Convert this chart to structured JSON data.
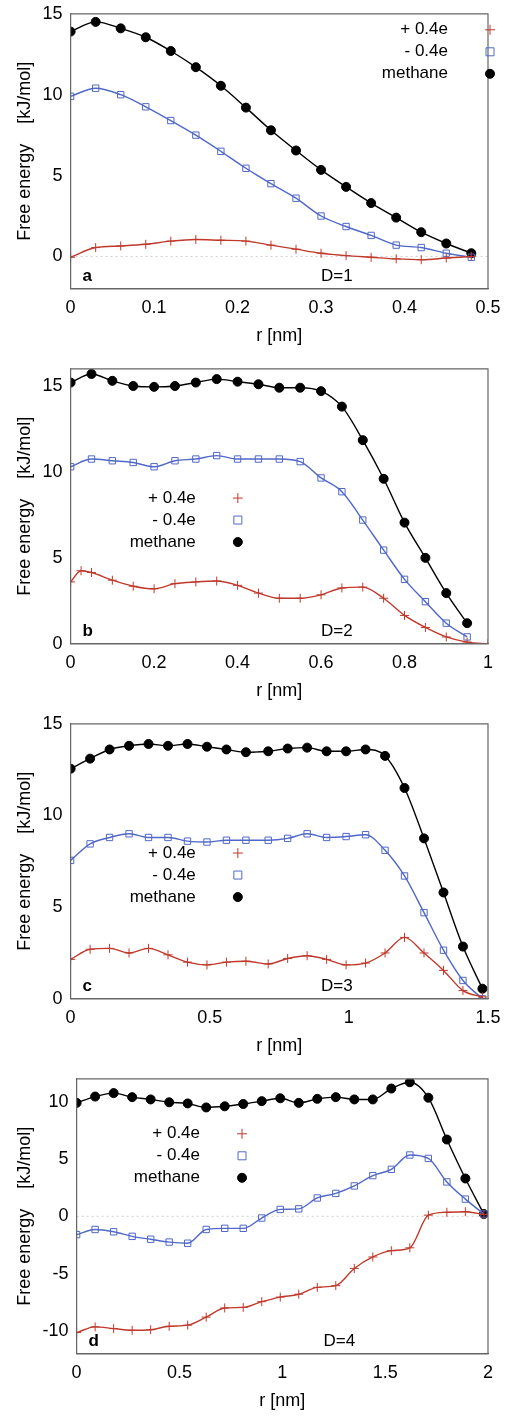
{
  "chart_data": [
    {
      "type": "line",
      "xlabel": "r [nm]",
      "ylabel": "Free energy    [kJ/mol]",
      "xlim": [
        0,
        0.5
      ],
      "xticks": [
        0,
        0.1,
        0.2,
        0.3,
        0.4,
        0.5
      ],
      "ylim": [
        -2,
        15
      ],
      "yticks": [
        0,
        5,
        10,
        15
      ],
      "legend": "top right",
      "annotations": [
        "a",
        "D=1"
      ],
      "ref_lines": [
        {
          "axis": "y",
          "value": 0,
          "color": "#d0d0d0",
          "line_style": "dotted"
        }
      ],
      "series": [
        {
          "name": "+ 0.4e",
          "color": "#c0392b",
          "marker": "cross",
          "x": [
            0,
            0.03,
            0.06,
            0.09,
            0.12,
            0.15,
            0.18,
            0.21,
            0.24,
            0.27,
            0.3,
            0.33,
            0.36,
            0.39,
            0.42,
            0.45,
            0.48
          ],
          "values": [
            -0.05,
            0.55,
            0.65,
            0.75,
            0.95,
            1.05,
            1.0,
            0.95,
            0.7,
            0.45,
            0.2,
            0.05,
            -0.05,
            -0.15,
            -0.2,
            -0.1,
            0
          ]
        },
        {
          "name": "- 0.4e",
          "color": "#5068c8",
          "marker": "square",
          "x": [
            0,
            0.03,
            0.06,
            0.09,
            0.12,
            0.15,
            0.18,
            0.21,
            0.24,
            0.27,
            0.3,
            0.33,
            0.36,
            0.39,
            0.42,
            0.45,
            0.48
          ],
          "values": [
            9.9,
            10.4,
            10.0,
            9.25,
            8.4,
            7.5,
            6.5,
            5.45,
            4.5,
            3.6,
            2.5,
            1.85,
            1.3,
            0.7,
            0.55,
            0.2,
            -0.05
          ]
        },
        {
          "name": "methane",
          "color": "#000000",
          "marker": "circle",
          "x": [
            0,
            0.03,
            0.06,
            0.09,
            0.12,
            0.15,
            0.18,
            0.21,
            0.24,
            0.27,
            0.3,
            0.33,
            0.36,
            0.39,
            0.42,
            0.45,
            0.48
          ],
          "values": [
            13.9,
            14.5,
            14.1,
            13.55,
            12.7,
            11.7,
            10.55,
            9.2,
            7.8,
            6.55,
            5.35,
            4.3,
            3.3,
            2.4,
            1.5,
            0.8,
            0.2
          ]
        }
      ]
    },
    {
      "type": "line",
      "xlabel": "r [nm]",
      "ylabel": "Free energy    [kJ/mol]",
      "xlim": [
        0,
        1
      ],
      "xticks": [
        0,
        0.2,
        0.4,
        0.6,
        0.8,
        1
      ],
      "ylim": [
        0,
        16
      ],
      "yticks": [
        0,
        5,
        10,
        15
      ],
      "legend": "left",
      "annotations": [
        "b",
        "D=2"
      ],
      "series": [
        {
          "name": "+ 0.4e",
          "color": "#c0392b",
          "marker": "cross",
          "x": [
            0,
            0.025,
            0.05,
            0.1,
            0.15,
            0.2,
            0.25,
            0.3,
            0.35,
            0.4,
            0.45,
            0.5,
            0.55,
            0.6,
            0.65,
            0.7,
            0.75,
            0.8,
            0.85,
            0.9,
            0.95,
            1
          ],
          "values": [
            3.6,
            4.25,
            4.15,
            3.7,
            3.35,
            3.2,
            3.5,
            3.6,
            3.65,
            3.4,
            2.95,
            2.65,
            2.65,
            2.85,
            3.25,
            3.3,
            2.65,
            1.65,
            0.95,
            0.4,
            0.1,
            0
          ]
        },
        {
          "name": "- 0.4e",
          "color": "#5068c8",
          "marker": "square",
          "x": [
            0,
            0.05,
            0.1,
            0.15,
            0.2,
            0.25,
            0.3,
            0.35,
            0.4,
            0.45,
            0.5,
            0.55,
            0.6,
            0.65,
            0.7,
            0.75,
            0.8,
            0.85,
            0.9,
            0.95
          ],
          "values": [
            10.3,
            10.75,
            10.65,
            10.55,
            10.3,
            10.65,
            10.75,
            10.95,
            10.75,
            10.75,
            10.75,
            10.6,
            9.65,
            8.85,
            7.2,
            5.45,
            3.75,
            2.45,
            1.2,
            0.4
          ]
        },
        {
          "name": "methane",
          "color": "#000000",
          "marker": "circle",
          "x": [
            0,
            0.05,
            0.1,
            0.15,
            0.2,
            0.25,
            0.3,
            0.35,
            0.4,
            0.45,
            0.5,
            0.55,
            0.6,
            0.65,
            0.7,
            0.75,
            0.8,
            0.85,
            0.9,
            0.95
          ],
          "values": [
            15.2,
            15.7,
            15.3,
            15.0,
            14.95,
            15.0,
            15.2,
            15.4,
            15.25,
            15.1,
            14.9,
            14.9,
            14.7,
            13.8,
            11.85,
            9.6,
            7.05,
            5.0,
            2.95,
            1.2
          ]
        }
      ]
    },
    {
      "type": "line",
      "xlabel": "r [nm]",
      "ylabel": "Free energy    [kJ/mol]",
      "xlim": [
        0,
        1.5
      ],
      "xticks": [
        0,
        0.5,
        1,
        1.5
      ],
      "ylim": [
        0,
        15
      ],
      "yticks": [
        0,
        5,
        10,
        15
      ],
      "legend": "left",
      "annotations": [
        "c",
        "D=3"
      ],
      "series": [
        {
          "name": "+ 0.4e",
          "color": "#c0392b",
          "marker": "cross",
          "x": [
            0,
            0.07,
            0.14,
            0.21,
            0.28,
            0.35,
            0.42,
            0.49,
            0.56,
            0.63,
            0.71,
            0.78,
            0.85,
            0.92,
            0.99,
            1.06,
            1.13,
            1.2,
            1.27,
            1.34,
            1.41,
            1.48
          ],
          "values": [
            2.15,
            2.7,
            2.75,
            2.5,
            2.75,
            2.4,
            2.0,
            1.85,
            2.0,
            2.05,
            1.9,
            2.2,
            2.35,
            2.15,
            1.85,
            1.95,
            2.5,
            3.35,
            2.5,
            1.55,
            0.45,
            0.1
          ]
        },
        {
          "name": "- 0.4e",
          "color": "#5068c8",
          "marker": "square",
          "x": [
            0,
            0.07,
            0.14,
            0.21,
            0.28,
            0.35,
            0.42,
            0.49,
            0.56,
            0.63,
            0.71,
            0.78,
            0.85,
            0.92,
            0.99,
            1.06,
            1.13,
            1.2,
            1.27,
            1.34,
            1.41,
            1.48
          ],
          "values": [
            7.55,
            8.45,
            8.8,
            9.0,
            8.8,
            8.8,
            8.6,
            8.55,
            8.65,
            8.65,
            8.65,
            8.75,
            9.0,
            8.8,
            8.85,
            8.95,
            8.1,
            6.7,
            4.7,
            2.65,
            1.0,
            0
          ]
        },
        {
          "name": "methane",
          "color": "#000000",
          "marker": "circle",
          "x": [
            0,
            0.07,
            0.14,
            0.21,
            0.28,
            0.35,
            0.42,
            0.49,
            0.56,
            0.63,
            0.71,
            0.78,
            0.85,
            0.92,
            0.99,
            1.06,
            1.13,
            1.2,
            1.27,
            1.34,
            1.41,
            1.48
          ],
          "values": [
            12.55,
            13.1,
            13.6,
            13.8,
            13.9,
            13.8,
            13.9,
            13.75,
            13.6,
            13.45,
            13.5,
            13.65,
            13.7,
            13.5,
            13.5,
            13.6,
            13.25,
            11.5,
            8.75,
            5.8,
            2.85,
            0.55
          ]
        }
      ]
    },
    {
      "type": "line",
      "xlabel": "r [nm]",
      "ylabel": "Free energy    [kJ/mol]",
      "xlim": [
        0,
        2
      ],
      "xticks": [
        0,
        0.5,
        1,
        1.5,
        2
      ],
      "ylim": [
        -12,
        12
      ],
      "yticks": [
        -10,
        -5,
        0,
        5,
        10
      ],
      "legend": "top left",
      "annotations": [
        "d",
        "D=4"
      ],
      "ref_lines": [
        {
          "axis": "y",
          "value": 0,
          "color": "#d0d0d0",
          "line_style": "dotted"
        }
      ],
      "series": [
        {
          "name": "+ 0.4e",
          "color": "#c0392b",
          "marker": "cross",
          "x": [
            0,
            0.09,
            0.18,
            0.27,
            0.36,
            0.45,
            0.54,
            0.63,
            0.72,
            0.81,
            0.9,
            0.99,
            1.08,
            1.17,
            1.26,
            1.35,
            1.44,
            1.53,
            1.62,
            1.71,
            1.8,
            1.89,
            1.98
          ],
          "values": [
            -10.15,
            -9.65,
            -9.8,
            -9.95,
            -9.9,
            -9.6,
            -9.5,
            -8.8,
            -8.0,
            -7.95,
            -7.45,
            -7.05,
            -6.8,
            -6.2,
            -6.05,
            -4.55,
            -3.55,
            -3.0,
            -2.75,
            0.1,
            0.35,
            0.4,
            0.15
          ]
        },
        {
          "name": "- 0.4e",
          "color": "#5068c8",
          "marker": "square",
          "x": [
            0,
            0.09,
            0.18,
            0.27,
            0.36,
            0.45,
            0.54,
            0.63,
            0.72,
            0.81,
            0.9,
            0.99,
            1.08,
            1.17,
            1.26,
            1.35,
            1.44,
            1.53,
            1.62,
            1.71,
            1.8,
            1.89,
            1.98
          ],
          "values": [
            -1.6,
            -1.15,
            -1.35,
            -1.75,
            -2.0,
            -2.25,
            -2.35,
            -1.15,
            -1.05,
            -1.05,
            -0.15,
            0.6,
            0.65,
            1.6,
            2.0,
            2.65,
            3.55,
            4.1,
            5.35,
            5.05,
            3.0,
            1.5,
            0.2
          ]
        },
        {
          "name": "methane",
          "color": "#000000",
          "marker": "circle",
          "x": [
            0,
            0.09,
            0.18,
            0.27,
            0.36,
            0.45,
            0.54,
            0.63,
            0.72,
            0.81,
            0.9,
            0.99,
            1.08,
            1.17,
            1.26,
            1.35,
            1.44,
            1.53,
            1.62,
            1.71,
            1.8,
            1.89,
            1.98
          ],
          "values": [
            9.9,
            10.45,
            10.75,
            10.4,
            10.2,
            9.95,
            9.85,
            9.5,
            9.6,
            9.8,
            10.05,
            10.3,
            9.9,
            10.25,
            10.4,
            10.2,
            10.2,
            11.15,
            11.7,
            10.35,
            6.7,
            3.3,
            0.2
          ]
        }
      ]
    }
  ]
}
